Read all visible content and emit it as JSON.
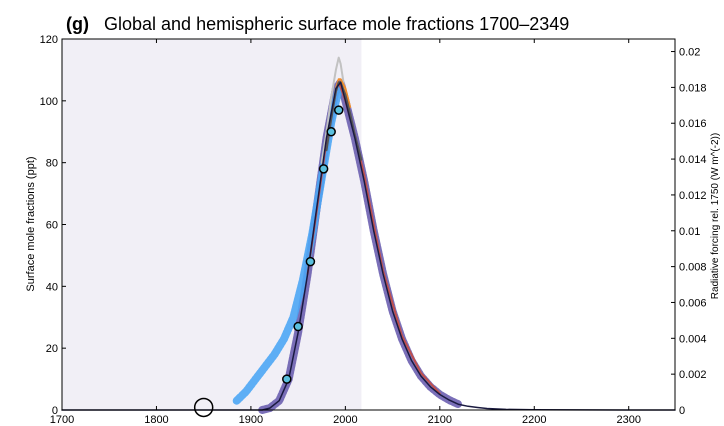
{
  "chart_data": {
    "type": "line",
    "panel_label": "(g)",
    "title": "Global and hemispheric surface mole fractions 1700–2349",
    "ylabel": "Surface mole fractions (ppt)",
    "ylabel_right": "Radiative forcing rel. 1750 (W m^(-2))",
    "xlim": [
      1700,
      2349
    ],
    "ylim": [
      0,
      120
    ],
    "ylim_right": [
      0,
      0.0207
    ],
    "x_ticks": [
      1700,
      1800,
      1900,
      2000,
      2100,
      2200,
      2300
    ],
    "y_ticks": [
      0,
      20,
      40,
      60,
      80,
      100,
      120
    ],
    "y_ticks_right": [
      0,
      0.002,
      0.004,
      0.006,
      0.008,
      0.01,
      0.012,
      0.014,
      0.016,
      0.018,
      0.02
    ],
    "shaded_region": [
      1700,
      2017
    ],
    "series": [
      {
        "color": "#6b5fb0",
        "style": "thick-markers",
        "x": [
          1912,
          1920,
          1930,
          1940,
          1950,
          1960,
          1970,
          1980,
          1990,
          1995,
          2000,
          2010,
          2020,
          2030,
          2040,
          2050,
          2060,
          2070,
          2080,
          2090,
          2100,
          2110,
          2120
        ],
        "values": [
          0,
          0.6,
          3,
          10,
          25,
          44,
          66,
          88,
          104,
          106,
          100,
          88,
          74,
          58,
          44,
          32,
          23,
          16,
          11,
          7.5,
          5,
          3.2,
          1.8
        ]
      },
      {
        "color": "#4da6f5",
        "style": "thick-markers",
        "x": [
          1885,
          1895,
          1905,
          1915,
          1925,
          1935,
          1945,
          1955,
          1965,
          1975,
          1985,
          1993
        ],
        "values": [
          3,
          6,
          10,
          14,
          18,
          23,
          30,
          42,
          57,
          75,
          93,
          104
        ]
      },
      {
        "color": "#c2c2c2",
        "style": "line",
        "x": [
          1975,
          1980,
          1985,
          1990,
          1993,
          1995,
          1998,
          2000
        ],
        "values": [
          80,
          90,
          101,
          110,
          114,
          112,
          106,
          100
        ]
      },
      {
        "color": "#f08c2b",
        "style": "line",
        "x": [
          1980,
          1985,
          1990,
          1993,
          1995,
          2000,
          2005
        ],
        "values": [
          85,
          95,
          104,
          107,
          107,
          104,
          98
        ]
      },
      {
        "color": "#c0504d",
        "style": "line",
        "x": [
          1960,
          1970,
          1980,
          1990,
          1993,
          2000,
          2010,
          2020,
          2030,
          2040,
          2060,
          2080,
          2100
        ],
        "values": [
          44,
          65,
          87,
          103,
          106,
          100,
          89,
          76,
          60,
          45,
          24,
          12,
          5.3
        ]
      },
      {
        "color": "#555555",
        "style": "line",
        "x": [
          1980,
          1985,
          1990,
          1993,
          1995,
          2000,
          2005,
          2010,
          2017
        ],
        "values": [
          84,
          94,
          103,
          106,
          106,
          102,
          96,
          89,
          81
        ]
      },
      {
        "color": "#1a1a40",
        "style": "line",
        "x": [
          1700,
          1800,
          1900,
          1912,
          1920,
          1930,
          1940,
          1950,
          1960,
          1970,
          1980,
          1990,
          1995,
          2000,
          2010,
          2020,
          2030,
          2040,
          2050,
          2060,
          2070,
          2080,
          2090,
          2100,
          2110,
          2120,
          2130,
          2140,
          2150,
          2170,
          2200,
          2250,
          2300,
          2349
        ],
        "values": [
          0,
          0,
          0,
          0,
          0.6,
          3,
          10,
          25,
          44,
          66,
          88,
          104,
          106,
          100,
          88,
          74,
          58,
          44,
          32,
          23,
          16,
          11,
          7.5,
          5,
          3.2,
          1.8,
          1.2,
          0.8,
          0.5,
          0.2,
          0.08,
          0.02,
          0,
          0
        ]
      }
    ],
    "observations": {
      "x": [
        1938,
        1950,
        1963,
        1977,
        1985,
        1993
      ],
      "values": [
        10,
        27,
        48,
        78,
        90,
        97
      ]
    },
    "open_circle": {
      "x": [
        1850
      ],
      "values": [
        0.5
      ]
    }
  }
}
